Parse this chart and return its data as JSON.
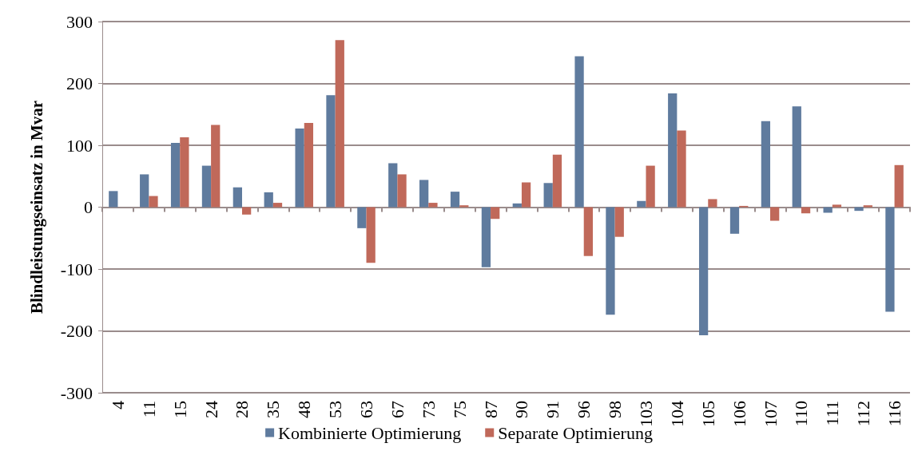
{
  "chart_data": {
    "type": "bar",
    "ylabel": "Blindleistungseinsatz in Mvar",
    "categories": [
      "4",
      "11",
      "15",
      "24",
      "28",
      "35",
      "48",
      "53",
      "63",
      "67",
      "73",
      "75",
      "87",
      "90",
      "91",
      "96",
      "98",
      "103",
      "104",
      "105",
      "106",
      "107",
      "110",
      "111",
      "112",
      "116"
    ],
    "series": [
      {
        "name": "Kombinierte Optimierung",
        "color": "#5f7b9e",
        "values": [
          26,
          53,
          104,
          67,
          32,
          24,
          127,
          181,
          -34,
          71,
          44,
          25,
          -97,
          6,
          39,
          244,
          -174,
          10,
          184,
          -207,
          -43,
          139,
          163,
          -9,
          -6,
          -169
        ]
      },
      {
        "name": "Separate Optimierung",
        "color": "#c0695a",
        "values": [
          0,
          18,
          113,
          133,
          -12,
          7,
          136,
          270,
          -90,
          53,
          7,
          3,
          -19,
          40,
          85,
          -79,
          -48,
          67,
          124,
          13,
          2,
          -22,
          -10,
          4,
          3,
          68
        ]
      }
    ],
    "ylim": [
      -300,
      300
    ],
    "yticks": [
      -300,
      -200,
      -100,
      0,
      100,
      200,
      300
    ],
    "grid": "y",
    "legend": "bottom"
  }
}
